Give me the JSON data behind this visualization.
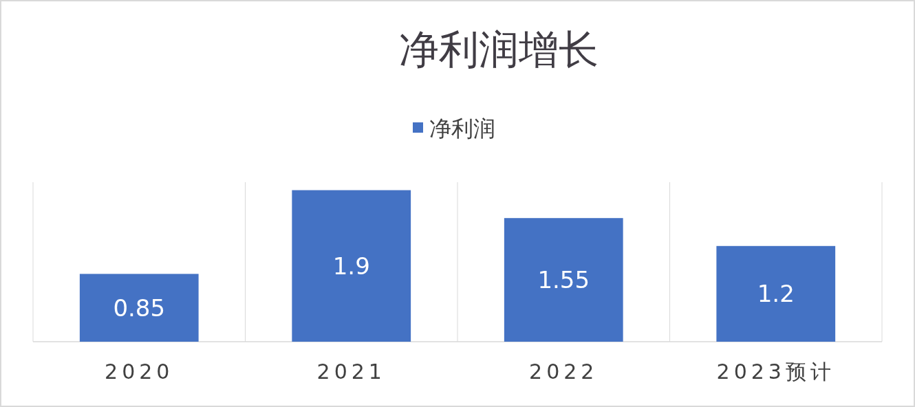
{
  "chart_data": {
    "type": "bar",
    "title": "净利润增长",
    "categories": [
      "2020",
      "2021",
      "2022",
      "2023预计"
    ],
    "series": [
      {
        "name": "净利润",
        "color": "#4472c4",
        "values": [
          0.85,
          1.9,
          1.55,
          1.2
        ]
      }
    ],
    "ylim": [
      0,
      2
    ],
    "data_labels": true,
    "grid": "x",
    "legend": "top"
  }
}
